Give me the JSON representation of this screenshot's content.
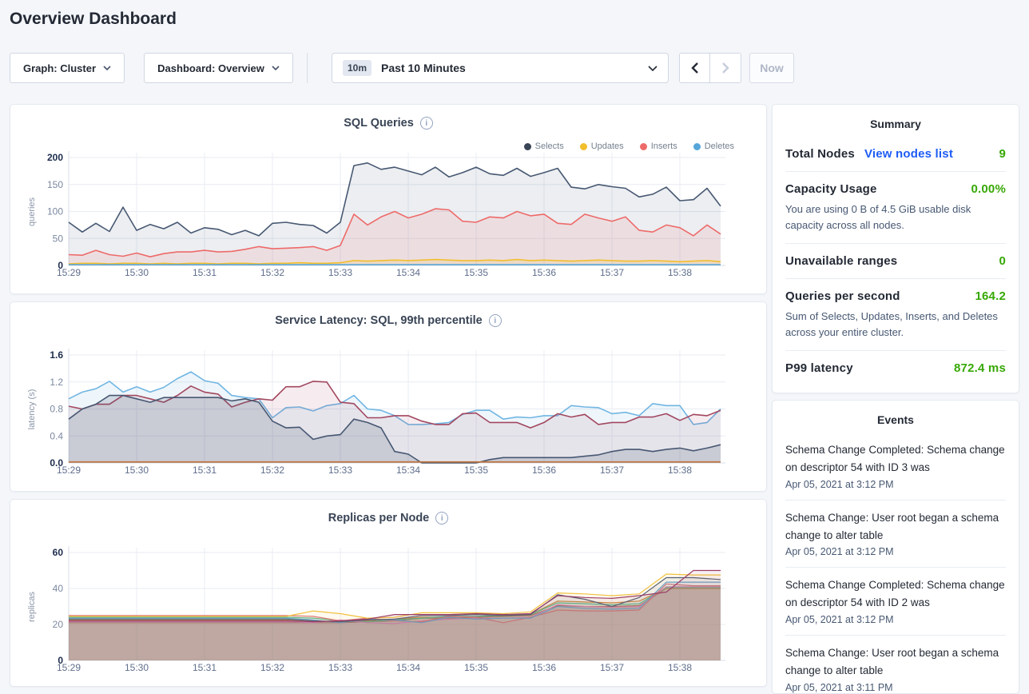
{
  "page": {
    "title": "Overview Dashboard"
  },
  "controls": {
    "graph_dropdown": "Graph: Cluster",
    "dashboard_dropdown": "Dashboard: Overview",
    "time_badge": "10m",
    "time_label": "Past 10 Minutes",
    "now_label": "Now"
  },
  "icons": {
    "info": "i"
  },
  "colors": {
    "green": "#37a806",
    "link_blue": "#1d5cf5",
    "navy_text": "#242a35",
    "slate_text": "#475872",
    "card_border": "#e4e9f0",
    "background": "#f4f6fa"
  },
  "summary": {
    "title": "Summary",
    "total_nodes": {
      "label": "Total Nodes",
      "link": "View nodes list",
      "value": "9"
    },
    "capacity": {
      "label": "Capacity Usage",
      "value": "0.00%",
      "description": "You are using 0 B of 4.5 GiB usable disk capacity across all nodes."
    },
    "unavailable": {
      "label": "Unavailable ranges",
      "value": "0"
    },
    "qps": {
      "label": "Queries per second",
      "value": "164.2",
      "description": "Sum of Selects, Updates, Inserts, and Deletes across your entire cluster."
    },
    "p99": {
      "label": "P99 latency",
      "value": "872.4 ms"
    }
  },
  "events": {
    "title": "Events",
    "items": [
      {
        "message": "Schema Change Completed: Schema change on descriptor 54 with ID 3 was",
        "timestamp": "Apr 05, 2021 at 3:12 PM"
      },
      {
        "message": "Schema Change: User root began a schema change to alter table",
        "timestamp": "Apr 05, 2021 at 3:12 PM"
      },
      {
        "message": "Schema Change Completed: Schema change on descriptor 54 with ID 2 was",
        "timestamp": "Apr 05, 2021 at 3:12 PM"
      },
      {
        "message": "Schema Change: User root began a schema change to alter table",
        "timestamp": "Apr 05, 2021 at 3:11 PM"
      }
    ]
  },
  "chart_data": [
    {
      "type": "area",
      "title": "SQL Queries",
      "ylabel": "queries",
      "ylim": [
        0,
        200
      ],
      "yticks": [
        0,
        50,
        100,
        150,
        200
      ],
      "ytick_labels": [
        "0",
        "50",
        "100",
        "150",
        "200"
      ],
      "xticks": [
        "15:29",
        "15:30",
        "15:31",
        "15:32",
        "15:33",
        "15:34",
        "15:35",
        "15:36",
        "15:37",
        "15:38"
      ],
      "x_step_min": 0.2,
      "line_width": 1.6,
      "legend": [
        {
          "label": "Selects",
          "color": "#394455"
        },
        {
          "label": "Updates",
          "color": "#f2be2c"
        },
        {
          "label": "Inserts",
          "color": "#ee6a6a"
        },
        {
          "label": "Deletes",
          "color": "#56a6d9"
        }
      ],
      "series": [
        {
          "name": "Selects",
          "color": "#475872",
          "fill_opacity": 0.1,
          "values": [
            80,
            62,
            78,
            63,
            108,
            65,
            76,
            68,
            80,
            60,
            70,
            67,
            57,
            65,
            55,
            78,
            80,
            76,
            74,
            60,
            80,
            185,
            190,
            178,
            182,
            175,
            168,
            182,
            164,
            172,
            182,
            170,
            167,
            180,
            165,
            172,
            180,
            145,
            142,
            150,
            146,
            143,
            127,
            132,
            145,
            120,
            122,
            143,
            110
          ]
        },
        {
          "name": "Inserts",
          "color": "#ee6a6a",
          "fill_opacity": 0.12,
          "values": [
            20,
            19,
            28,
            20,
            17,
            23,
            16,
            22,
            25,
            25,
            28,
            25,
            26,
            30,
            35,
            31,
            32,
            33,
            35,
            28,
            37,
            95,
            75,
            90,
            100,
            88,
            95,
            105,
            103,
            82,
            80,
            90,
            88,
            100,
            92,
            95,
            78,
            76,
            95,
            88,
            82,
            90,
            65,
            62,
            75,
            70,
            55,
            75,
            58
          ]
        },
        {
          "name": "Updates",
          "color": "#f2be2c",
          "fill_opacity": 0.15,
          "values": [
            3,
            4,
            4,
            3,
            4,
            4,
            3,
            4,
            3,
            4,
            4,
            3,
            4,
            4,
            3,
            4,
            4,
            5,
            4,
            4,
            5,
            9,
            8,
            9,
            10,
            9,
            10,
            11,
            10,
            9,
            9,
            10,
            9,
            11,
            9,
            10,
            9,
            8,
            9,
            10,
            9,
            8,
            8,
            9,
            8,
            7,
            8,
            9,
            7
          ]
        },
        {
          "name": "Deletes",
          "color": "#56a6d9",
          "fill_opacity": 0.15,
          "flat": 1.5,
          "count": 49
        }
      ]
    },
    {
      "type": "area",
      "title": "Service Latency: SQL, 99th percentile",
      "ylabel": "latency (s)",
      "ylim": [
        0,
        1.6
      ],
      "yticks": [
        0,
        0.4,
        0.8,
        1.2,
        1.6
      ],
      "ytick_labels": [
        "0.0",
        "0.4",
        "0.8",
        "1.2",
        "1.6"
      ],
      "xticks": [
        "15:29",
        "15:30",
        "15:31",
        "15:32",
        "15:33",
        "15:34",
        "15:35",
        "15:36",
        "15:37",
        "15:38"
      ],
      "x_step_min": 0.2,
      "line_width": 1.6,
      "series": [
        {
          "name": "node-blue",
          "color": "#71b6e2",
          "fill_opacity": 0.12,
          "values": [
            0.95,
            1.05,
            1.1,
            1.21,
            1.05,
            1.13,
            1.05,
            1.12,
            1.25,
            1.35,
            1.22,
            1.18,
            1.0,
            0.97,
            0.95,
            0.67,
            0.82,
            0.83,
            0.77,
            0.85,
            0.88,
            1.0,
            0.8,
            0.78,
            0.7,
            0.57,
            0.57,
            0.58,
            0.6,
            0.72,
            0.78,
            0.78,
            0.65,
            0.68,
            0.67,
            0.7,
            0.7,
            0.85,
            0.83,
            0.82,
            0.73,
            0.75,
            0.7,
            0.88,
            0.85,
            0.85,
            0.57,
            0.6,
            0.8
          ]
        },
        {
          "name": "node-maroon",
          "color": "#a2475f",
          "fill_opacity": 0.1,
          "values": [
            0.84,
            0.8,
            0.87,
            0.87,
            1.0,
            1.0,
            0.95,
            0.9,
            1.0,
            1.14,
            1.05,
            1.02,
            0.83,
            0.9,
            0.95,
            0.93,
            1.13,
            1.13,
            1.21,
            1.2,
            0.9,
            0.88,
            0.67,
            0.67,
            0.7,
            0.7,
            0.62,
            0.57,
            0.57,
            0.73,
            0.74,
            0.6,
            0.6,
            0.6,
            0.52,
            0.6,
            0.73,
            0.68,
            0.72,
            0.57,
            0.6,
            0.6,
            0.68,
            0.68,
            0.73,
            0.63,
            0.72,
            0.7,
            0.78
          ]
        },
        {
          "name": "node-navy",
          "color": "#475872",
          "fill_opacity": 0.18,
          "values": [
            0.65,
            0.8,
            0.87,
            1.0,
            1.0,
            0.95,
            0.9,
            0.97,
            0.97,
            0.97,
            0.97,
            0.97,
            0.92,
            0.95,
            0.9,
            0.62,
            0.52,
            0.53,
            0.35,
            0.4,
            0.42,
            0.65,
            0.6,
            0.52,
            0.17,
            0.13,
            0,
            0,
            0,
            0,
            0,
            0.05,
            0.08,
            0.08,
            0.08,
            0.08,
            0.08,
            0.08,
            0.1,
            0.12,
            0.17,
            0.2,
            0.2,
            0.17,
            0.2,
            0.22,
            0.18,
            0.22,
            0.27
          ]
        },
        {
          "name": "node-orange",
          "color": "#c2763f",
          "fill_opacity": 0.2,
          "flat": 0.015,
          "count": 49
        }
      ]
    },
    {
      "type": "area",
      "title": "Replicas per Node",
      "ylabel": "replicas",
      "ylim": [
        0,
        60
      ],
      "yticks": [
        0,
        20,
        40,
        60
      ],
      "ytick_labels": [
        "0",
        "20",
        "40",
        "60"
      ],
      "xticks": [
        "15:29",
        "15:30",
        "15:31",
        "15:32",
        "15:33",
        "15:34",
        "15:35",
        "15:36",
        "15:37",
        "15:38"
      ],
      "x_step_min": 0.4,
      "line_width": 1.2,
      "series": [
        {
          "name": "node-brown",
          "color": "#a3705f",
          "fill_opacity": 0.35,
          "values": [
            21,
            21,
            21,
            21,
            21,
            21,
            21,
            21,
            21,
            21,
            21,
            21.5,
            22,
            23.5,
            23.5,
            24,
            24.5,
            25,
            30.5,
            30,
            30,
            30.5,
            40,
            40,
            40
          ]
        },
        {
          "name": "node-orange",
          "color": "#cf8a3e",
          "fill_opacity": 0.08,
          "values": [
            22.5,
            22.5,
            22.5,
            22.5,
            22.5,
            22.5,
            22.5,
            22.5,
            22.5,
            22,
            21.5,
            22,
            23,
            24,
            24,
            24.5,
            25,
            25.5,
            33,
            32.5,
            32,
            33,
            40,
            40,
            40
          ]
        },
        {
          "name": "node-green",
          "color": "#52ba92",
          "fill_opacity": 0.08,
          "values": [
            24,
            24,
            24,
            24,
            24,
            24,
            24,
            24,
            24,
            23.5,
            22,
            21.5,
            22.5,
            23.5,
            24.5,
            24.5,
            25,
            25.5,
            32,
            31.5,
            31,
            31.5,
            40.5,
            40.5,
            40.5
          ]
        },
        {
          "name": "node-pink",
          "color": "#dd83bb",
          "fill_opacity": 0.08,
          "values": [
            21.5,
            21.5,
            21.5,
            21.5,
            21.5,
            21.5,
            21.5,
            21.5,
            21.5,
            21,
            22.5,
            21,
            20.5,
            22,
            23,
            23.5,
            23.5,
            24,
            31,
            30,
            29.5,
            30,
            41,
            41,
            41
          ]
        },
        {
          "name": "node-salmon",
          "color": "#dd7479",
          "fill_opacity": 0.08,
          "values": [
            25,
            25,
            25,
            25,
            25,
            25,
            25,
            25,
            25,
            24.5,
            22,
            23.5,
            22,
            21.5,
            24.5,
            24,
            21,
            24,
            28,
            27.5,
            27.5,
            28,
            42.5,
            41.5,
            41.5
          ]
        },
        {
          "name": "node-blue",
          "color": "#64a5d4",
          "fill_opacity": 0.08,
          "values": [
            23.5,
            23.5,
            23.5,
            23.5,
            23.5,
            23.5,
            23.5,
            23.5,
            23.5,
            22.5,
            21,
            23,
            22.5,
            21,
            24,
            23,
            23.5,
            23.5,
            30,
            29,
            28.5,
            29,
            43.5,
            43.5,
            43.5
          ]
        },
        {
          "name": "node-slate",
          "color": "#4a5a77",
          "fill_opacity": 0.08,
          "values": [
            23,
            23,
            23,
            23,
            23,
            23,
            23,
            23,
            23,
            22,
            21.5,
            22.5,
            23,
            25,
            25,
            25.5,
            25,
            25.5,
            36.5,
            34,
            30,
            35,
            46,
            46,
            45
          ]
        },
        {
          "name": "node-yellow",
          "color": "#f1c13e",
          "fill_opacity": 0.08,
          "values": [
            24.5,
            24.5,
            24.5,
            24.5,
            24.5,
            24.5,
            24.5,
            24.5,
            24.5,
            27.5,
            26,
            23.5,
            24,
            26.5,
            26.5,
            26.5,
            26,
            27,
            37.5,
            37,
            36,
            37,
            48,
            47.5,
            47.5
          ]
        },
        {
          "name": "node-maroon",
          "color": "#9c3f68",
          "fill_opacity": 0.08,
          "values": [
            22,
            22,
            22,
            22,
            22,
            22,
            22,
            22,
            22,
            21.5,
            22,
            23,
            25.5,
            25.5,
            25.5,
            26,
            25.5,
            26,
            36,
            35,
            34.5,
            36,
            38,
            50,
            50
          ]
        }
      ]
    }
  ]
}
